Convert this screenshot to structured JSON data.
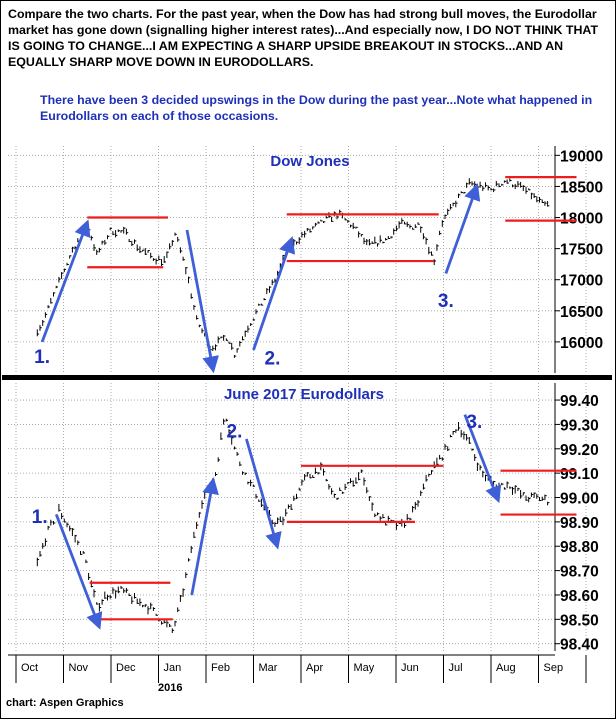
{
  "header": {
    "intro": "Compare the two charts. For the past year, when the Dow has had strong bull moves, the Eurodollar market has gone down (signalling higher interest rates)...And especially now, I DO NOT THINK THAT IS GOING TO CHANGE...I AM EXPECTING A SHARP UPSIDE BREAKOUT IN STOCKS...AND AN EQUALLY SHARP MOVE DOWN IN EURODOLLARS.",
    "note": "There have been 3 decided upswings in the Dow during the past year...Note what happened in Eurodollars on each of those occasions."
  },
  "credit": "chart: Aspen Graphics",
  "colors": {
    "accent": "#1e2fb8",
    "arrow": "#3f5fd8",
    "band": "#ee1c1c",
    "price": "#000000"
  },
  "chart_data": [
    {
      "type": "bar",
      "title": "Dow Jones",
      "x_start_month": "Sep 2015",
      "x_labels": [
        "Oct",
        "Nov",
        "Dec",
        "Jan",
        "Feb",
        "Mar",
        "Apr",
        "May",
        "Jun",
        "Jul",
        "Aug",
        "Sep"
      ],
      "x_sub_label": "2016",
      "y_ticks": [
        "19000",
        "18500",
        "18000",
        "17500",
        "17000",
        "16500",
        "16000"
      ],
      "ylim": [
        15500,
        19150
      ],
      "price_path": [
        [
          -0.1,
          16150
        ],
        [
          0.05,
          16300
        ],
        [
          0.4,
          16950
        ],
        [
          0.7,
          17500
        ],
        [
          1.0,
          17900
        ],
        [
          1.2,
          17400
        ],
        [
          1.5,
          17800
        ],
        [
          1.8,
          17750
        ],
        [
          2.1,
          17500
        ],
        [
          2.4,
          17350
        ],
        [
          2.65,
          17300
        ],
        [
          2.85,
          17750
        ],
        [
          3.1,
          17100
        ],
        [
          3.3,
          16350
        ],
        [
          3.6,
          15900
        ],
        [
          3.95,
          16100
        ],
        [
          4.1,
          15800
        ],
        [
          4.35,
          16200
        ],
        [
          4.65,
          16600
        ],
        [
          4.95,
          17000
        ],
        [
          5.2,
          17450
        ],
        [
          5.5,
          17700
        ],
        [
          5.8,
          17850
        ],
        [
          6.1,
          18000
        ],
        [
          6.3,
          18050
        ],
        [
          6.6,
          17850
        ],
        [
          6.9,
          17550
        ],
        [
          7.3,
          17650
        ],
        [
          7.6,
          17900
        ],
        [
          7.8,
          17850
        ],
        [
          8.0,
          17900
        ],
        [
          8.15,
          17600
        ],
        [
          8.3,
          17300
        ],
        [
          8.45,
          17900
        ],
        [
          8.8,
          18300
        ],
        [
          9.05,
          18550
        ],
        [
          9.3,
          18500
        ],
        [
          9.5,
          18450
        ],
        [
          9.8,
          18600
        ],
        [
          10.1,
          18500
        ],
        [
          10.3,
          18400
        ],
        [
          10.6,
          18200
        ],
        [
          10.9,
          18200
        ],
        [
          11.1,
          18100
        ],
        [
          11.25,
          18300
        ]
      ],
      "bands": [
        [
          [
            1.0,
            2.7
          ],
          18000
        ],
        [
          [
            1.0,
            2.6
          ],
          17200
        ],
        [
          [
            5.2,
            8.4
          ],
          18050
        ],
        [
          [
            5.2,
            8.3
          ],
          17300
        ],
        [
          [
            9.8,
            11.3
          ],
          18650
        ],
        [
          [
            9.8,
            11.3
          ],
          17950
        ]
      ],
      "arrows": [
        [
          [
            0.05,
            16000
          ],
          [
            1.0,
            17920
          ]
        ],
        [
          [
            3.1,
            17800
          ],
          [
            3.65,
            15550
          ]
        ],
        [
          [
            4.5,
            15870
          ],
          [
            5.3,
            17650
          ]
        ],
        [
          [
            8.55,
            17100
          ],
          [
            9.2,
            18500
          ]
        ]
      ],
      "annotations": [
        {
          "text": "1.",
          "x": 0.05,
          "y": 15950
        },
        {
          "text": "2.",
          "x": 4.9,
          "y": 15930
        },
        {
          "text": "3.",
          "x": 8.55,
          "y": 16850
        }
      ]
    },
    {
      "type": "bar",
      "title": "June 2017 Eurodollars",
      "x_labels": [
        "Oct",
        "Nov",
        "Dec",
        "Jan",
        "Feb",
        "Mar",
        "Apr",
        "May",
        "Jun",
        "Jul",
        "Aug",
        "Sep"
      ],
      "x_sub_label": "2016",
      "y_ticks": [
        "99.40",
        "99.30",
        "99.20",
        "99.10",
        "99.00",
        "98.90",
        "98.80",
        "98.70",
        "98.60",
        "98.50",
        "98.40"
      ],
      "ylim": [
        98.37,
        99.47
      ],
      "price_path": [
        [
          -0.1,
          98.7
        ],
        [
          0.15,
          98.85
        ],
        [
          0.4,
          98.95
        ],
        [
          0.7,
          98.85
        ],
        [
          0.95,
          98.75
        ],
        [
          1.2,
          98.55
        ],
        [
          1.4,
          98.6
        ],
        [
          1.7,
          98.62
        ],
        [
          2.0,
          98.58
        ],
        [
          2.3,
          98.55
        ],
        [
          2.55,
          98.5
        ],
        [
          2.8,
          98.45
        ],
        [
          3.0,
          98.6
        ],
        [
          3.2,
          98.8
        ],
        [
          3.4,
          98.98
        ],
        [
          3.7,
          99.1
        ],
        [
          3.9,
          99.35
        ],
        [
          4.1,
          99.2
        ],
        [
          4.3,
          99.1
        ],
        [
          4.6,
          99.0
        ],
        [
          4.9,
          98.9
        ],
        [
          5.1,
          98.9
        ],
        [
          5.3,
          98.98
        ],
        [
          5.6,
          99.08
        ],
        [
          5.9,
          99.12
        ],
        [
          6.2,
          99.0
        ],
        [
          6.5,
          99.05
        ],
        [
          6.8,
          99.1
        ],
        [
          7.0,
          98.95
        ],
        [
          7.3,
          98.9
        ],
        [
          7.6,
          98.88
        ],
        [
          7.9,
          98.95
        ],
        [
          8.2,
          99.1
        ],
        [
          8.5,
          99.18
        ],
        [
          8.8,
          99.3
        ],
        [
          9.05,
          99.22
        ],
        [
          9.3,
          99.1
        ],
        [
          9.6,
          99.05
        ],
        [
          9.9,
          99.05
        ],
        [
          10.2,
          99.0
        ],
        [
          10.5,
          99.0
        ],
        [
          10.8,
          98.98
        ],
        [
          11.1,
          99.0
        ],
        [
          11.3,
          99.02
        ]
      ],
      "bands": [
        [
          [
            1.05,
            2.75
          ],
          98.65
        ],
        [
          [
            1.05,
            2.8
          ],
          98.5
        ],
        [
          [
            5.5,
            8.5
          ],
          99.13
        ],
        [
          [
            5.2,
            7.9
          ],
          98.9
        ],
        [
          [
            9.7,
            11.3
          ],
          99.11
        ],
        [
          [
            9.7,
            11.3
          ],
          98.93
        ]
      ],
      "arrows": [
        [
          [
            0.35,
            98.93
          ],
          [
            1.25,
            98.47
          ]
        ],
        [
          [
            3.2,
            98.6
          ],
          [
            3.65,
            99.07
          ]
        ],
        [
          [
            4.35,
            99.24
          ],
          [
            5.0,
            98.8
          ]
        ],
        [
          [
            8.95,
            99.34
          ],
          [
            9.65,
            98.99
          ]
        ]
      ],
      "annotations": [
        {
          "text": "1.",
          "x": 0.0,
          "y": 98.97
        },
        {
          "text": "2.",
          "x": 4.1,
          "y": 99.32
        },
        {
          "text": "3.",
          "x": 9.15,
          "y": 99.36
        }
      ]
    }
  ]
}
